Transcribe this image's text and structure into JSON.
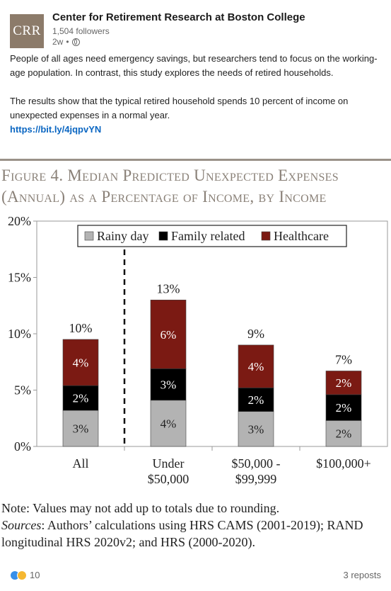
{
  "header": {
    "logo_text": "CRR",
    "org_name": "Center for Retirement Research at Boston College",
    "followers": "1,504 followers",
    "time": "2w",
    "separator": "•",
    "visibility_icon": "globe-icon"
  },
  "post": {
    "paragraph1": "People of all ages need emergency savings, but researchers tend to focus on the working-age population. In contrast, this study explores the needs of retired households.",
    "paragraph2": "The results show that the typical retired household spends 10 percent of income on unexpected expenses in a normal year.",
    "link": "https://bit.ly/4jqpvYN"
  },
  "figure": {
    "title": "Figure 4. Median Predicted Unexpected Expenses (Annual) as a Percentage of Income, by Income",
    "note": "Note: Values may not add up to totals due to rounding.",
    "sources_label": "Sources",
    "sources_text": ": Authors’ calculations using HRS CAMS (2001-2019); RAND longitudinal HRS 2020v2; and HRS (2000-2020)."
  },
  "chart_data": {
    "type": "bar",
    "stacked": true,
    "title": "Figure 4. Median Predicted Unexpected Expenses (Annual) as a Percentage of Income, by Income",
    "categories": [
      "All",
      "Under $50,000",
      "$50,000 - $99,999",
      "$100,000+"
    ],
    "category_lines": [
      [
        "All"
      ],
      [
        "Under",
        "$50,000"
      ],
      [
        "$50,000 -",
        "$99,999"
      ],
      [
        "$100,000+"
      ]
    ],
    "series": [
      {
        "name": "Rainy day",
        "values": [
          3.2,
          4.1,
          3.1,
          2.3
        ],
        "labels": [
          "3%",
          "4%",
          "3%",
          "2%"
        ],
        "color": "#b3b3b3"
      },
      {
        "name": "Family related",
        "values": [
          2.2,
          2.8,
          2.1,
          2.3
        ],
        "labels": [
          "2%",
          "3%",
          "2%",
          "2%"
        ],
        "color": "#000000"
      },
      {
        "name": "Healthcare",
        "values": [
          4.1,
          6.1,
          3.8,
          2.1
        ],
        "labels": [
          "4%",
          "6%",
          "4%",
          "2%"
        ],
        "color": "#7b1a13"
      }
    ],
    "totals": [
      "10%",
      "13%",
      "9%",
      "7%"
    ],
    "y_ticks": [
      "0%",
      "5%",
      "10%",
      "15%",
      "20%"
    ],
    "ylim": [
      0,
      20
    ],
    "grid": false,
    "legend": "top",
    "divider_after_category": 0
  },
  "footer": {
    "reaction_count": "10",
    "reposts": "3 reposts"
  }
}
